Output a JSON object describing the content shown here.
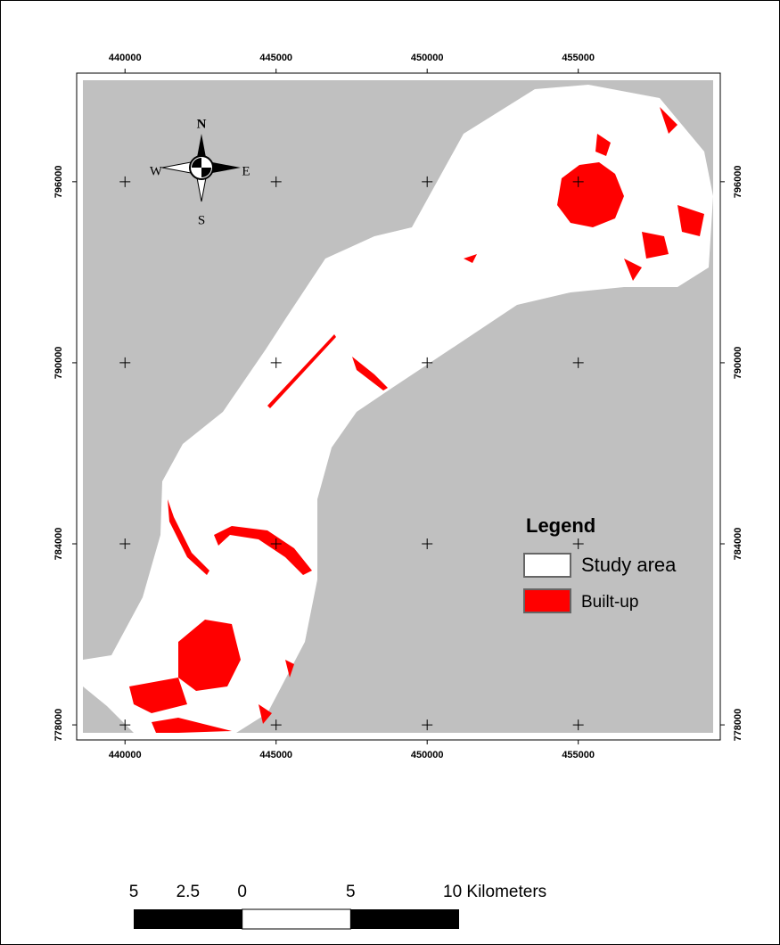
{
  "map": {
    "xlim": [
      438400,
      459700
    ],
    "ylim": [
      777500,
      799600
    ],
    "xticks": [
      440000,
      445000,
      450000,
      455000
    ],
    "yticks": [
      778000,
      784000,
      790000,
      796000
    ],
    "compass": {
      "north": "N",
      "south": "S",
      "east": "E",
      "west": "W"
    },
    "legend": {
      "title": "Legend",
      "items": [
        "Study area",
        "Built-up"
      ]
    },
    "scale_bar": {
      "ticks": [
        {
          "value": -5,
          "label": "5"
        },
        {
          "value": -2.5,
          "label": "2.5"
        },
        0,
        5,
        {
          "value": 10,
          "label": "10 Kilometers"
        }
      ]
    }
  }
}
